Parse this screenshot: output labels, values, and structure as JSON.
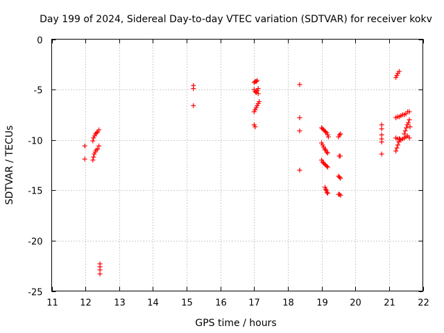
{
  "chart_data": {
    "type": "scatter",
    "title": "Day 199 of 2024, Sidereal Day-to-day VTEC variation (SDTVAR) for receiver kokv",
    "xlabel": "GPS time / hours",
    "ylabel": "SDTVAR / TECUs",
    "xlim": [
      11,
      22
    ],
    "ylim": [
      -25,
      0
    ],
    "xticks": [
      11,
      12,
      13,
      14,
      15,
      16,
      17,
      18,
      19,
      20,
      21,
      22
    ],
    "yticks": [
      0,
      -5,
      -10,
      -15,
      -20,
      -25
    ],
    "grid": true,
    "marker": "+",
    "series_color": "#ff0000",
    "series": [
      {
        "name": "SDTVAR",
        "points": [
          [
            11.98,
            -10.6
          ],
          [
            11.98,
            -11.9
          ],
          [
            12.22,
            -10.1
          ],
          [
            12.24,
            -9.8
          ],
          [
            12.27,
            -9.6
          ],
          [
            12.3,
            -9.4
          ],
          [
            12.33,
            -9.3
          ],
          [
            12.36,
            -9.2
          ],
          [
            12.4,
            -9.0
          ],
          [
            12.22,
            -12.0
          ],
          [
            12.24,
            -11.7
          ],
          [
            12.26,
            -11.4
          ],
          [
            12.29,
            -11.2
          ],
          [
            12.32,
            -11.0
          ],
          [
            12.36,
            -10.9
          ],
          [
            12.4,
            -10.6
          ],
          [
            12.43,
            -22.3
          ],
          [
            12.43,
            -22.6
          ],
          [
            12.43,
            -22.9
          ],
          [
            12.43,
            -23.3
          ],
          [
            15.2,
            -4.6
          ],
          [
            15.2,
            -4.9
          ],
          [
            15.2,
            -6.6
          ],
          [
            17.0,
            -4.3
          ],
          [
            17.03,
            -4.2
          ],
          [
            17.06,
            -4.2
          ],
          [
            17.09,
            -4.1
          ],
          [
            17.0,
            -5.0
          ],
          [
            17.03,
            -5.2
          ],
          [
            17.06,
            -5.3
          ],
          [
            17.09,
            -5.1
          ],
          [
            17.12,
            -5.4
          ],
          [
            17.12,
            -4.9
          ],
          [
            17.0,
            -7.2
          ],
          [
            17.03,
            -7.0
          ],
          [
            17.06,
            -6.8
          ],
          [
            17.09,
            -6.6
          ],
          [
            17.12,
            -6.4
          ],
          [
            17.15,
            -6.2
          ],
          [
            17.0,
            -8.5
          ],
          [
            17.03,
            -8.7
          ],
          [
            18.35,
            -4.5
          ],
          [
            18.35,
            -7.8
          ],
          [
            18.35,
            -9.1
          ],
          [
            18.35,
            -13.0
          ],
          [
            19.0,
            -8.8
          ],
          [
            19.03,
            -8.9
          ],
          [
            19.06,
            -9.0
          ],
          [
            19.09,
            -9.1
          ],
          [
            19.12,
            -9.2
          ],
          [
            19.15,
            -9.3
          ],
          [
            19.18,
            -9.5
          ],
          [
            19.2,
            -9.7
          ],
          [
            19.0,
            -10.3
          ],
          [
            19.03,
            -10.5
          ],
          [
            19.06,
            -10.7
          ],
          [
            19.09,
            -10.9
          ],
          [
            19.12,
            -11.0
          ],
          [
            19.15,
            -11.2
          ],
          [
            19.18,
            -11.3
          ],
          [
            19.0,
            -12.0
          ],
          [
            19.03,
            -12.2
          ],
          [
            19.06,
            -12.3
          ],
          [
            19.09,
            -12.4
          ],
          [
            19.12,
            -12.5
          ],
          [
            19.15,
            -12.6
          ],
          [
            19.18,
            -12.7
          ],
          [
            19.1,
            -14.7
          ],
          [
            19.12,
            -14.9
          ],
          [
            19.14,
            -15.0
          ],
          [
            19.16,
            -15.2
          ],
          [
            19.18,
            -15.3
          ],
          [
            19.5,
            -9.7
          ],
          [
            19.53,
            -9.5
          ],
          [
            19.56,
            -9.4
          ],
          [
            19.52,
            -11.6
          ],
          [
            19.55,
            -11.6
          ],
          [
            19.5,
            -13.6
          ],
          [
            19.53,
            -13.7
          ],
          [
            19.56,
            -13.8
          ],
          [
            19.5,
            -15.4
          ],
          [
            19.53,
            -15.4
          ],
          [
            19.56,
            -15.5
          ],
          [
            20.78,
            -8.5
          ],
          [
            20.78,
            -8.9
          ],
          [
            20.78,
            -9.5
          ],
          [
            20.78,
            -9.9
          ],
          [
            20.78,
            -10.2
          ],
          [
            20.78,
            -11.4
          ],
          [
            21.2,
            -3.8
          ],
          [
            21.23,
            -3.6
          ],
          [
            21.26,
            -3.4
          ],
          [
            21.3,
            -3.2
          ],
          [
            21.2,
            -7.8
          ],
          [
            21.25,
            -7.7
          ],
          [
            21.3,
            -7.7
          ],
          [
            21.35,
            -7.6
          ],
          [
            21.4,
            -7.5
          ],
          [
            21.45,
            -7.5
          ],
          [
            21.5,
            -7.4
          ],
          [
            21.55,
            -7.2
          ],
          [
            21.6,
            -7.2
          ],
          [
            21.2,
            -9.8
          ],
          [
            21.25,
            -9.9
          ],
          [
            21.3,
            -9.9
          ],
          [
            21.35,
            -10.0
          ],
          [
            21.4,
            -9.9
          ],
          [
            21.45,
            -9.8
          ],
          [
            21.5,
            -9.7
          ],
          [
            21.55,
            -9.6
          ],
          [
            21.6,
            -9.8
          ],
          [
            21.2,
            -11.1
          ],
          [
            21.23,
            -10.8
          ],
          [
            21.26,
            -10.5
          ],
          [
            21.29,
            -10.2
          ],
          [
            21.32,
            -9.9
          ],
          [
            21.45,
            -9.4
          ],
          [
            21.48,
            -9.1
          ],
          [
            21.51,
            -8.8
          ],
          [
            21.54,
            -8.5
          ],
          [
            21.57,
            -8.3
          ],
          [
            21.6,
            -8.0
          ],
          [
            21.62,
            -8.7
          ]
        ]
      }
    ]
  }
}
